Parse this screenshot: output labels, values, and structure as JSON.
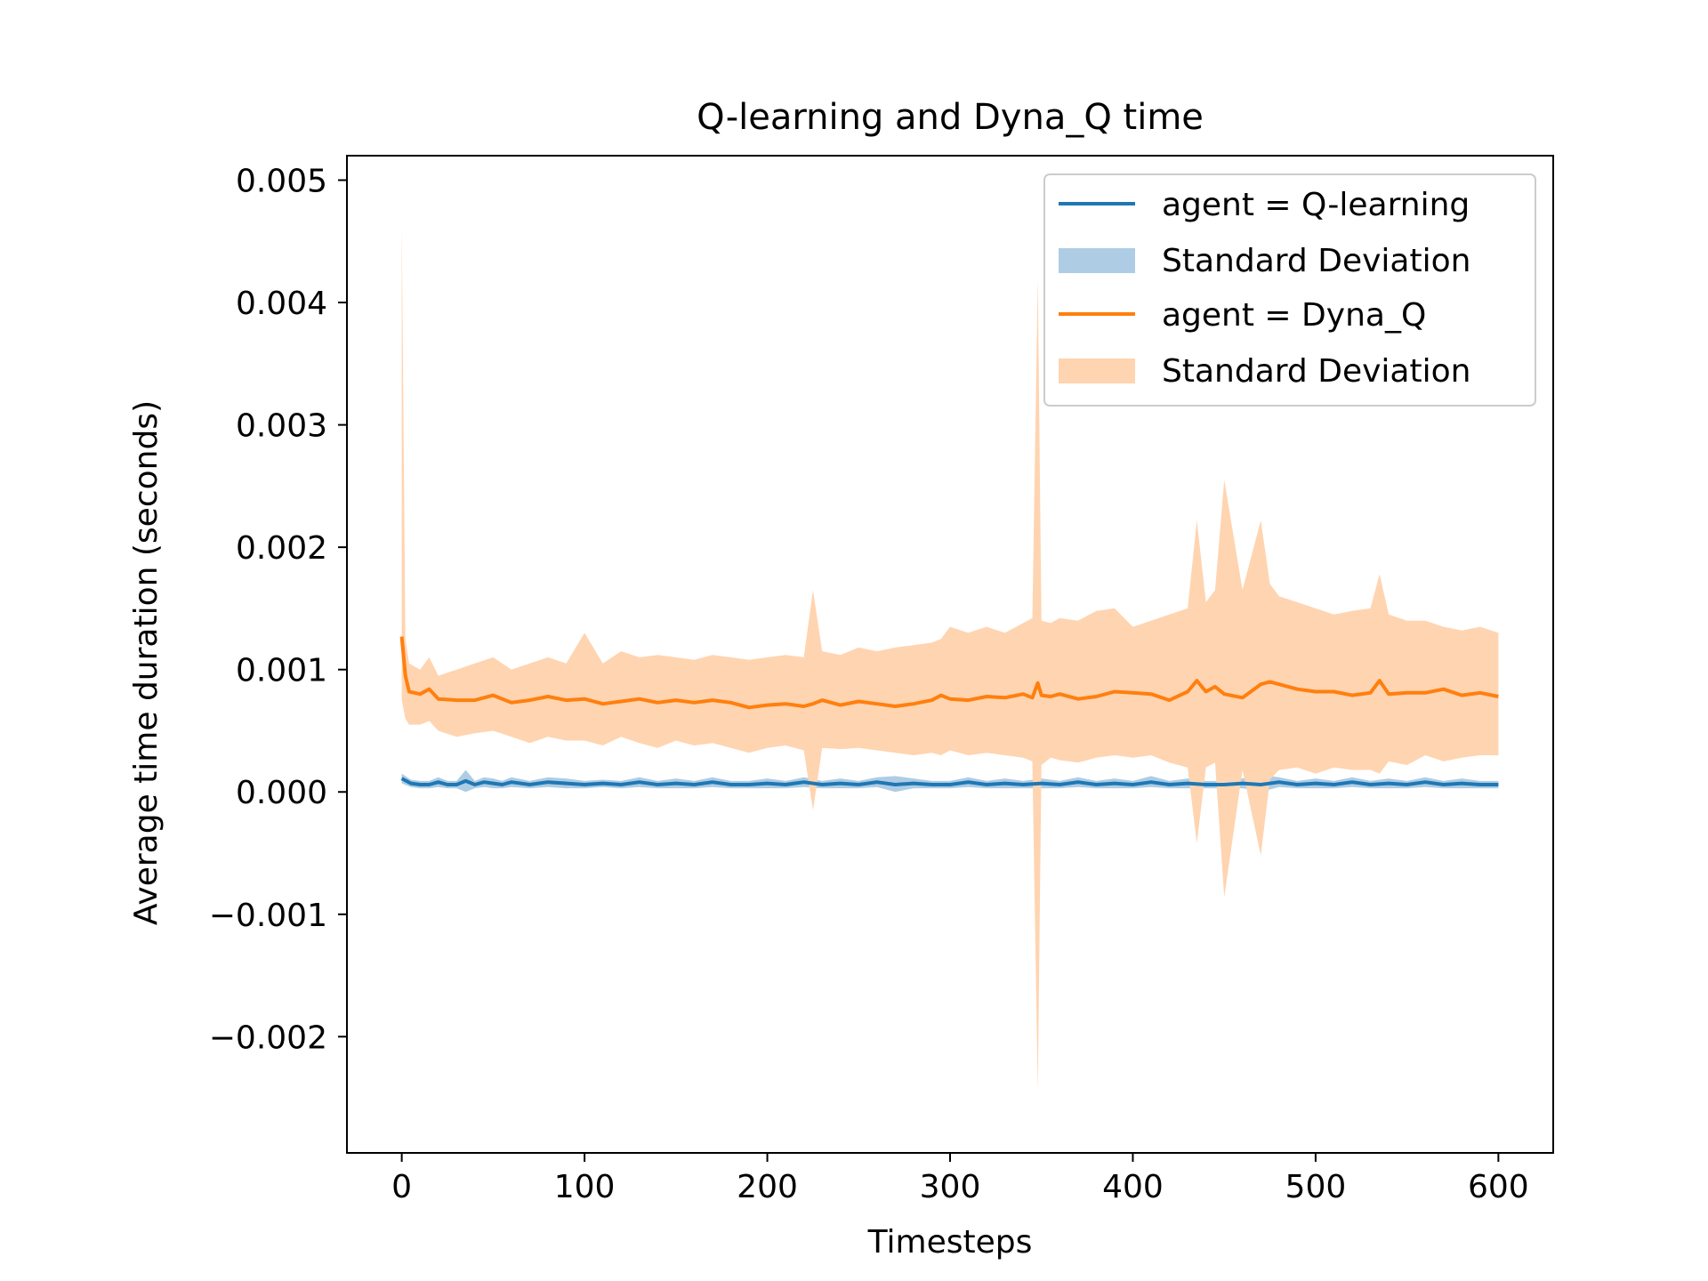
{
  "chart_data": {
    "type": "line",
    "title": "Q-learning and Dyna_Q time",
    "xlabel": "Timesteps",
    "ylabel": "Average time duration (seconds)",
    "xlim": [
      -30,
      630
    ],
    "ylim": [
      -0.00295,
      0.0052
    ],
    "xticks": [
      0,
      100,
      200,
      300,
      400,
      500,
      600
    ],
    "xtick_labels": [
      "0",
      "100",
      "200",
      "300",
      "400",
      "500",
      "600"
    ],
    "yticks": [
      -0.002,
      -0.001,
      0.0,
      0.001,
      0.002,
      0.003,
      0.004,
      0.005
    ],
    "ytick_labels": [
      "−0.002",
      "−0.001",
      "0.000",
      "0.001",
      "0.002",
      "0.003",
      "0.004",
      "0.005"
    ],
    "grid": false,
    "legend_position": "upper right",
    "series": [
      {
        "name": "agent = Q-learning",
        "band_label": "Standard Deviation",
        "color": "#1f77b4",
        "band_color": "#aecde4",
        "x": [
          0,
          5,
          10,
          15,
          20,
          25,
          30,
          35,
          40,
          45,
          50,
          55,
          60,
          70,
          80,
          90,
          100,
          110,
          120,
          130,
          140,
          150,
          160,
          170,
          180,
          190,
          200,
          210,
          220,
          230,
          240,
          250,
          260,
          270,
          280,
          290,
          300,
          310,
          320,
          330,
          340,
          350,
          360,
          370,
          380,
          390,
          400,
          410,
          420,
          430,
          440,
          450,
          460,
          470,
          480,
          490,
          500,
          510,
          520,
          530,
          540,
          550,
          560,
          570,
          580,
          590,
          600
        ],
        "mean": [
          0.00011,
          7e-05,
          6e-05,
          6e-05,
          8e-05,
          6e-05,
          6e-05,
          9e-05,
          6e-05,
          8e-05,
          7e-05,
          6e-05,
          8e-05,
          6e-05,
          8e-05,
          7e-05,
          6e-05,
          7e-05,
          6e-05,
          8e-05,
          6e-05,
          7e-05,
          6e-05,
          8e-05,
          6e-05,
          6e-05,
          7e-05,
          6e-05,
          8e-05,
          6e-05,
          7e-05,
          6e-05,
          8e-05,
          6e-05,
          7e-05,
          6e-05,
          6e-05,
          8e-05,
          6e-05,
          7e-05,
          6e-05,
          7e-05,
          6e-05,
          8e-05,
          6e-05,
          7e-05,
          6e-05,
          8e-05,
          6e-05,
          7e-05,
          6e-05,
          6e-05,
          7e-05,
          6e-05,
          8e-05,
          6e-05,
          7e-05,
          6e-05,
          8e-05,
          6e-05,
          7e-05,
          6e-05,
          8e-05,
          6e-05,
          7e-05,
          6e-05,
          6e-05
        ],
        "lower": [
          7e-05,
          4e-05,
          3e-05,
          3e-05,
          4e-05,
          3e-05,
          3e-05,
          0.0,
          3e-05,
          4e-05,
          3e-05,
          3e-05,
          4e-05,
          3e-05,
          4e-05,
          3e-05,
          3e-05,
          4e-05,
          3e-05,
          4e-05,
          3e-05,
          3e-05,
          3e-05,
          4e-05,
          3e-05,
          3e-05,
          3e-05,
          3e-05,
          4e-05,
          3e-05,
          3e-05,
          3e-05,
          4e-05,
          0.0,
          3e-05,
          3e-05,
          3e-05,
          4e-05,
          3e-05,
          3e-05,
          3e-05,
          3e-05,
          3e-05,
          4e-05,
          3e-05,
          3e-05,
          3e-05,
          4e-05,
          3e-05,
          3e-05,
          3e-05,
          3e-05,
          3e-05,
          0.0,
          4e-05,
          3e-05,
          3e-05,
          3e-05,
          4e-05,
          3e-05,
          3e-05,
          3e-05,
          4e-05,
          3e-05,
          3e-05,
          3e-05,
          3e-05
        ],
        "upper": [
          0.00015,
          0.0001,
          9e-05,
          9e-05,
          0.00012,
          9e-05,
          9e-05,
          0.00018,
          9e-05,
          0.00012,
          0.00011,
          9e-05,
          0.00012,
          9e-05,
          0.00012,
          0.00011,
          9e-05,
          0.0001,
          9e-05,
          0.00012,
          9e-05,
          0.00011,
          9e-05,
          0.00012,
          9e-05,
          9e-05,
          0.00011,
          9e-05,
          0.00012,
          9e-05,
          0.00011,
          9e-05,
          0.00012,
          0.00013,
          0.00011,
          9e-05,
          9e-05,
          0.00012,
          9e-05,
          0.00011,
          9e-05,
          0.00011,
          9e-05,
          0.00012,
          9e-05,
          0.00011,
          9e-05,
          0.00013,
          9e-05,
          0.00011,
          9e-05,
          9e-05,
          0.00011,
          0.00014,
          0.00012,
          9e-05,
          0.00011,
          9e-05,
          0.00012,
          9e-05,
          0.00011,
          9e-05,
          0.00012,
          9e-05,
          0.00011,
          9e-05,
          9e-05
        ]
      },
      {
        "name": "agent = Dyna_Q",
        "band_label": "Standard Deviation",
        "color": "#ff7f0e",
        "band_color": "#ffd4b0",
        "x": [
          0,
          2,
          4,
          10,
          15,
          20,
          30,
          40,
          50,
          60,
          70,
          80,
          90,
          100,
          110,
          120,
          130,
          140,
          150,
          160,
          170,
          180,
          190,
          200,
          210,
          220,
          225,
          230,
          240,
          250,
          260,
          270,
          280,
          290,
          295,
          300,
          310,
          320,
          330,
          340,
          345,
          348,
          350,
          355,
          360,
          370,
          380,
          390,
          400,
          410,
          420,
          430,
          435,
          440,
          445,
          450,
          460,
          470,
          475,
          480,
          490,
          500,
          510,
          520,
          530,
          535,
          540,
          550,
          560,
          570,
          580,
          590,
          600
        ],
        "mean": [
          0.00127,
          0.00095,
          0.00082,
          0.0008,
          0.00084,
          0.00076,
          0.00075,
          0.00075,
          0.00079,
          0.00073,
          0.00075,
          0.00078,
          0.00075,
          0.00076,
          0.00072,
          0.00074,
          0.00076,
          0.00073,
          0.00075,
          0.00073,
          0.00075,
          0.00073,
          0.00069,
          0.00071,
          0.00072,
          0.0007,
          0.00072,
          0.00075,
          0.00071,
          0.00074,
          0.00072,
          0.0007,
          0.00072,
          0.00075,
          0.00079,
          0.00076,
          0.00075,
          0.00078,
          0.00077,
          0.0008,
          0.00077,
          0.00089,
          0.00079,
          0.00078,
          0.0008,
          0.00076,
          0.00078,
          0.00082,
          0.00081,
          0.0008,
          0.00075,
          0.00082,
          0.00091,
          0.00082,
          0.00086,
          0.0008,
          0.00077,
          0.00088,
          0.0009,
          0.00088,
          0.00084,
          0.00082,
          0.00082,
          0.00079,
          0.00081,
          0.00091,
          0.0008,
          0.00081,
          0.00081,
          0.00084,
          0.00079,
          0.00081,
          0.00078
        ],
        "lower": [
          0.00075,
          0.0006,
          0.00055,
          0.00055,
          0.00058,
          0.0005,
          0.00045,
          0.00048,
          0.0005,
          0.00045,
          0.0004,
          0.00045,
          0.00042,
          0.00042,
          0.00038,
          0.00045,
          0.0004,
          0.00036,
          0.00042,
          0.00038,
          0.0004,
          0.00036,
          0.00032,
          0.00036,
          0.00038,
          0.00034,
          -0.00015,
          0.00036,
          0.00035,
          0.00036,
          0.00034,
          0.00032,
          0.0003,
          0.00032,
          0.0003,
          0.00034,
          0.0003,
          0.00032,
          0.0003,
          0.00028,
          0.00025,
          -0.00245,
          0.00022,
          0.00028,
          0.00026,
          0.00024,
          0.00028,
          0.0003,
          0.00028,
          0.0003,
          0.00024,
          0.0002,
          -0.00042,
          0.0002,
          0.00024,
          -0.00086,
          0.00018,
          -0.00052,
          0.0001,
          0.00018,
          0.0002,
          0.00015,
          0.0002,
          0.00018,
          0.00018,
          0.00015,
          0.00025,
          0.00022,
          0.0003,
          0.00025,
          0.00028,
          0.0003,
          0.0003
        ],
        "upper": [
          0.00465,
          0.00125,
          0.00105,
          0.001,
          0.0011,
          0.00095,
          0.001,
          0.00105,
          0.0011,
          0.001,
          0.00105,
          0.0011,
          0.00105,
          0.0013,
          0.00105,
          0.00115,
          0.0011,
          0.00112,
          0.0011,
          0.00108,
          0.00112,
          0.0011,
          0.00108,
          0.0011,
          0.00112,
          0.0011,
          0.00165,
          0.00115,
          0.00112,
          0.00118,
          0.00115,
          0.00118,
          0.0012,
          0.00122,
          0.00125,
          0.00135,
          0.0013,
          0.00135,
          0.0013,
          0.00138,
          0.00142,
          0.0042,
          0.0014,
          0.00138,
          0.00142,
          0.0014,
          0.00148,
          0.0015,
          0.00135,
          0.0014,
          0.00145,
          0.0015,
          0.00222,
          0.00155,
          0.00165,
          0.00255,
          0.00165,
          0.00222,
          0.0017,
          0.0016,
          0.00155,
          0.0015,
          0.00145,
          0.00148,
          0.0015,
          0.00178,
          0.00145,
          0.0014,
          0.0014,
          0.00135,
          0.00132,
          0.00135,
          0.0013
        ]
      }
    ]
  }
}
